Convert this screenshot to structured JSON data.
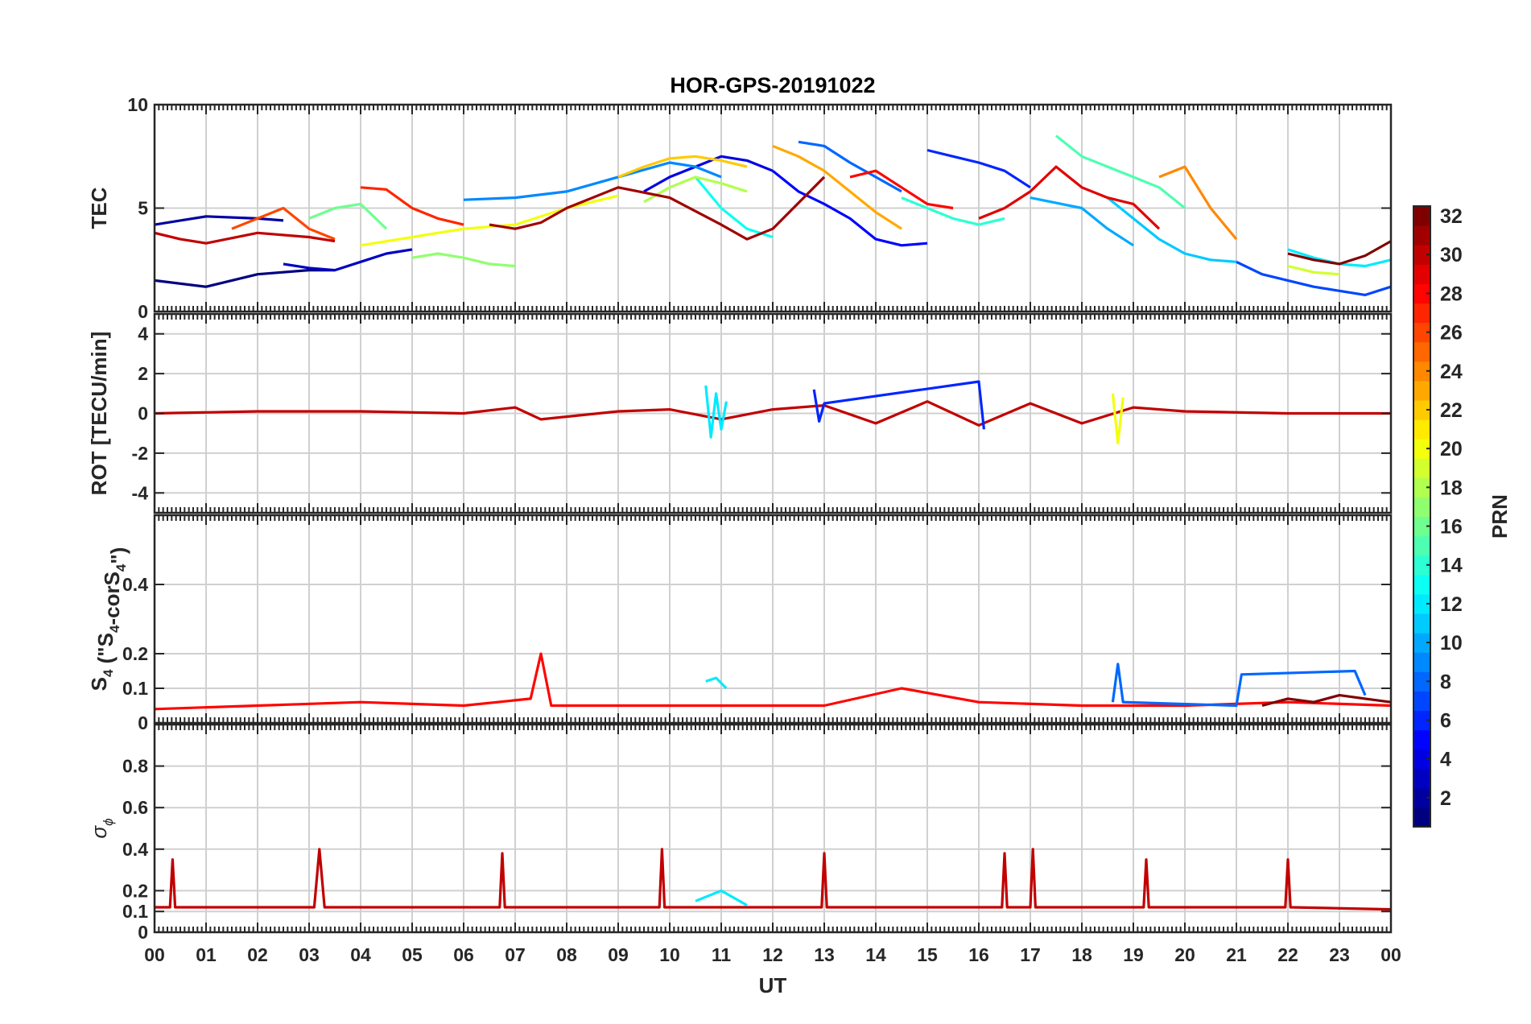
{
  "title": "HOR-GPS-20191022",
  "xlabel": "UT",
  "x_ticks": [
    "00",
    "01",
    "02",
    "03",
    "04",
    "05",
    "06",
    "07",
    "08",
    "09",
    "10",
    "11",
    "12",
    "13",
    "14",
    "15",
    "16",
    "17",
    "18",
    "19",
    "20",
    "21",
    "22",
    "23",
    "00"
  ],
  "panels": [
    {
      "id": "tec",
      "ylabel": "TEC",
      "ylim": [
        0,
        10
      ],
      "yticks": [
        0,
        5,
        10
      ]
    },
    {
      "id": "rot",
      "ylabel": "ROT [TECU/min]",
      "ylim": [
        -5,
        5
      ],
      "yticks": [
        -4,
        -2,
        0,
        2,
        4
      ]
    },
    {
      "id": "s4",
      "ylabel_main": "S",
      "ylabel_sub1": "4",
      "ylabel_mid": " (\"S",
      "ylabel_sub2": "4",
      "ylabel_mid2": "-corS",
      "ylabel_sub3": "4",
      "ylabel_end": "\")",
      "ylim": [
        0,
        0.6
      ],
      "yticks": [
        0,
        0.1,
        0.2,
        0.4
      ]
    },
    {
      "id": "sigma",
      "ylabel_main": "σ",
      "ylabel_sub": "ϕ",
      "ylim": [
        0,
        1
      ],
      "yticks": [
        0,
        0.1,
        0.2,
        0.4,
        0.6,
        0.8
      ]
    }
  ],
  "colorbar": {
    "label": "PRN",
    "range": [
      1,
      32
    ],
    "ticks": [
      2,
      4,
      6,
      8,
      10,
      12,
      14,
      16,
      18,
      20,
      22,
      24,
      26,
      28,
      30,
      32
    ],
    "colormap": "jet"
  },
  "chart_data": [
    {
      "type": "line",
      "title": "HOR-GPS-20191022",
      "ylabel": "TEC",
      "xlabel": "UT",
      "xlim": [
        0,
        24
      ],
      "ylim": [
        0,
        10
      ],
      "series": [
        {
          "prn": 1,
          "x": [
            0.0,
            1.0,
            2.0,
            3.0,
            3.5
          ],
          "y": [
            1.5,
            1.2,
            1.8,
            2.0,
            2.0
          ]
        },
        {
          "prn": 2,
          "x": [
            0.0,
            0.5,
            1.0,
            2.0,
            2.5
          ],
          "y": [
            4.2,
            4.4,
            4.6,
            4.5,
            4.4
          ]
        },
        {
          "prn": 3,
          "x": [
            2.5,
            3.0,
            3.5,
            4.0,
            4.5,
            5.0
          ],
          "y": [
            2.3,
            2.1,
            2.0,
            2.4,
            2.8,
            3.0
          ]
        },
        {
          "prn": 4,
          "x": [
            9.5,
            10.0,
            10.5,
            11.0,
            11.5,
            12.0
          ],
          "y": [
            5.8,
            6.5,
            7.0,
            7.5,
            7.3,
            6.8
          ]
        },
        {
          "prn": 5,
          "x": [
            12.0,
            12.5,
            13.0,
            13.5,
            14.0,
            14.5,
            15.0
          ],
          "y": [
            6.8,
            5.8,
            5.2,
            4.5,
            3.5,
            3.2,
            3.3
          ]
        },
        {
          "prn": 6,
          "x": [
            15.0,
            15.5,
            16.0,
            16.5,
            17.0
          ],
          "y": [
            7.8,
            7.5,
            7.2,
            6.8,
            6.0
          ]
        },
        {
          "prn": 7,
          "x": [
            21.0,
            21.5,
            22.0,
            22.5,
            23.0,
            23.5,
            24.0
          ],
          "y": [
            2.4,
            1.8,
            1.5,
            1.2,
            1.0,
            0.8,
            1.2
          ]
        },
        {
          "prn": 8,
          "x": [
            12.5,
            13.0,
            13.5,
            14.0,
            14.5
          ],
          "y": [
            8.2,
            8.0,
            7.2,
            6.5,
            5.8
          ]
        },
        {
          "prn": 9,
          "x": [
            6.0,
            7.0,
            8.0,
            9.0,
            10.0,
            10.5,
            11.0
          ],
          "y": [
            5.4,
            5.5,
            5.8,
            6.5,
            7.2,
            7.0,
            6.5
          ]
        },
        {
          "prn": 10,
          "x": [
            17.0,
            18.0,
            18.5,
            19.0
          ],
          "y": [
            5.5,
            5.0,
            4.0,
            3.2
          ]
        },
        {
          "prn": 11,
          "x": [
            18.5,
            19.0,
            19.5,
            20.0,
            20.5,
            21.0
          ],
          "y": [
            5.5,
            4.5,
            3.5,
            2.8,
            2.5,
            2.4
          ]
        },
        {
          "prn": 12,
          "x": [
            22.0,
            22.5,
            23.0,
            23.5,
            24.0
          ],
          "y": [
            3.0,
            2.6,
            2.3,
            2.2,
            2.5
          ]
        },
        {
          "prn": 13,
          "x": [
            10.5,
            11.0,
            11.5,
            12.0
          ],
          "y": [
            6.5,
            5.0,
            4.0,
            3.6
          ]
        },
        {
          "prn": 14,
          "x": [
            14.5,
            15.0,
            15.5,
            16.0,
            16.5
          ],
          "y": [
            5.5,
            5.0,
            4.5,
            4.2,
            4.5
          ]
        },
        {
          "prn": 15,
          "x": [
            17.5,
            18.0,
            18.5,
            19.0,
            19.5,
            20.0
          ],
          "y": [
            8.5,
            7.5,
            7.0,
            6.5,
            6.0,
            5.0
          ]
        },
        {
          "prn": 16,
          "x": [
            3.0,
            3.5,
            4.0,
            4.5
          ],
          "y": [
            4.5,
            5.0,
            5.2,
            4.0
          ]
        },
        {
          "prn": 17,
          "x": [
            5.0,
            5.5,
            6.0,
            6.5,
            7.0
          ],
          "y": [
            2.6,
            2.8,
            2.6,
            2.3,
            2.2
          ]
        },
        {
          "prn": 18,
          "x": [
            9.5,
            10.0,
            10.5,
            11.0,
            11.5
          ],
          "y": [
            5.3,
            6.0,
            6.5,
            6.2,
            5.8
          ]
        },
        {
          "prn": 19,
          "x": [
            22.0,
            22.5,
            23.0
          ],
          "y": [
            2.2,
            1.9,
            1.8
          ]
        },
        {
          "prn": 20,
          "x": [
            4.0,
            5.0,
            6.0,
            7.0,
            8.0,
            9.0
          ],
          "y": [
            3.2,
            3.6,
            4.0,
            4.2,
            5.0,
            5.6
          ]
        },
        {
          "prn": 22,
          "x": [
            9.0,
            9.5,
            10.0,
            10.5,
            11.0,
            11.5
          ],
          "y": [
            6.5,
            7.0,
            7.4,
            7.5,
            7.3,
            7.0
          ]
        },
        {
          "prn": 23,
          "x": [
            12.0,
            12.5,
            13.0,
            13.5,
            14.0,
            14.5
          ],
          "y": [
            8.0,
            7.5,
            6.8,
            5.8,
            4.8,
            4.0
          ]
        },
        {
          "prn": 24,
          "x": [
            19.5,
            20.0,
            20.5,
            21.0
          ],
          "y": [
            6.5,
            7.0,
            5.0,
            3.5
          ]
        },
        {
          "prn": 26,
          "x": [
            1.5,
            2.0,
            2.5,
            3.0,
            3.5
          ],
          "y": [
            4.0,
            4.5,
            5.0,
            4.0,
            3.5
          ]
        },
        {
          "prn": 27,
          "x": [
            4.0,
            4.5,
            5.0,
            5.5,
            6.0
          ],
          "y": [
            6.0,
            5.9,
            5.0,
            4.5,
            4.2
          ]
        },
        {
          "prn": 28,
          "x": [
            13.5,
            14.0,
            14.5,
            15.0,
            15.5
          ],
          "y": [
            6.5,
            6.8,
            6.0,
            5.2,
            5.0
          ]
        },
        {
          "prn": 29,
          "x": [
            16.0,
            16.5,
            17.0,
            17.5,
            18.0,
            18.5,
            19.0,
            19.5
          ],
          "y": [
            4.5,
            5.0,
            5.8,
            7.0,
            6.0,
            5.5,
            5.2,
            4.0
          ]
        },
        {
          "prn": 30,
          "x": [
            0.0,
            0.5,
            1.0,
            2.0,
            3.0,
            3.5
          ],
          "y": [
            3.8,
            3.5,
            3.3,
            3.8,
            3.6,
            3.4
          ]
        },
        {
          "prn": 31,
          "x": [
            6.5,
            7.0,
            7.5,
            8.0,
            9.0,
            10.0,
            11.0,
            11.5,
            12.0,
            13.0
          ],
          "y": [
            4.2,
            4.0,
            4.3,
            5.0,
            6.0,
            5.5,
            4.2,
            3.5,
            4.0,
            6.5
          ]
        },
        {
          "prn": 32,
          "x": [
            22.0,
            22.5,
            23.0,
            23.5,
            24.0
          ],
          "y": [
            2.8,
            2.5,
            2.3,
            2.7,
            3.4
          ]
        }
      ]
    },
    {
      "type": "line",
      "ylabel": "ROT [TECU/min]",
      "xlim": [
        0,
        24
      ],
      "ylim": [
        -5,
        5
      ],
      "series": [
        {
          "prn": 30,
          "x": [
            0.0,
            2.0,
            4.0,
            6.0,
            7.0,
            7.5,
            9.0,
            10.0,
            11.0,
            12.0,
            13.0,
            14.0,
            15.0,
            16.0,
            17.0,
            18.0,
            19.0,
            20.0,
            22.0,
            24.0
          ],
          "y": [
            0.0,
            0.1,
            0.1,
            0.0,
            0.3,
            -0.3,
            0.1,
            0.2,
            -0.3,
            0.2,
            0.4,
            -0.5,
            0.6,
            -0.6,
            0.5,
            -0.5,
            0.3,
            0.1,
            0.0,
            0.0
          ]
        },
        {
          "prn": 12,
          "x": [
            10.7,
            10.8,
            10.9,
            11.0,
            11.1
          ],
          "y": [
            1.4,
            -1.2,
            1.0,
            -0.8,
            0.6
          ]
        },
        {
          "prn": 6,
          "x": [
            12.8,
            12.9,
            13.0,
            16.0,
            16.1
          ],
          "y": [
            1.2,
            -0.4,
            0.5,
            1.6,
            -0.8
          ]
        },
        {
          "prn": 20,
          "x": [
            18.6,
            18.7,
            18.8
          ],
          "y": [
            1.0,
            -1.5,
            0.8
          ]
        }
      ]
    },
    {
      "type": "line",
      "ylabel": "S4 (\"S4-corS4\")",
      "xlim": [
        0,
        24
      ],
      "ylim": [
        0,
        0.6
      ],
      "series": [
        {
          "prn": 28,
          "x": [
            0.0,
            2.0,
            4.0,
            6.0,
            7.3,
            7.5,
            7.7,
            9.0,
            11.0,
            13.0,
            14.5,
            16.0,
            18.0,
            20.0,
            22.0,
            24.0
          ],
          "y": [
            0.04,
            0.05,
            0.06,
            0.05,
            0.07,
            0.2,
            0.05,
            0.05,
            0.05,
            0.05,
            0.1,
            0.06,
            0.05,
            0.05,
            0.06,
            0.05
          ]
        },
        {
          "prn": 12,
          "x": [
            10.7,
            10.9,
            11.1
          ],
          "y": [
            0.12,
            0.13,
            0.1
          ]
        },
        {
          "prn": 8,
          "x": [
            18.6,
            18.7,
            18.8,
            21.0,
            21.1,
            23.3,
            23.5
          ],
          "y": [
            0.06,
            0.17,
            0.06,
            0.05,
            0.14,
            0.15,
            0.08
          ]
        },
        {
          "prn": 32,
          "x": [
            21.5,
            22.0,
            22.5,
            23.0,
            23.5,
            24.0
          ],
          "y": [
            0.05,
            0.07,
            0.06,
            0.08,
            0.07,
            0.06
          ]
        }
      ]
    },
    {
      "type": "line",
      "ylabel": "σϕ",
      "xlim": [
        0,
        24
      ],
      "ylim": [
        0,
        1
      ],
      "series": [
        {
          "prn": 30,
          "x": [
            0.0,
            0.3,
            0.35,
            0.4,
            3.1,
            3.2,
            3.3,
            6.7,
            6.75,
            6.8,
            9.8,
            9.85,
            9.9,
            12.95,
            13.0,
            13.05,
            16.45,
            16.5,
            16.55,
            17.0,
            17.05,
            17.1,
            19.2,
            19.25,
            19.3,
            21.95,
            22.0,
            22.05,
            24.0
          ],
          "y": [
            0.12,
            0.12,
            0.35,
            0.12,
            0.12,
            0.4,
            0.12,
            0.12,
            0.38,
            0.12,
            0.12,
            0.4,
            0.12,
            0.12,
            0.38,
            0.12,
            0.12,
            0.38,
            0.12,
            0.12,
            0.4,
            0.12,
            0.12,
            0.35,
            0.12,
            0.12,
            0.35,
            0.12,
            0.11
          ]
        },
        {
          "prn": 12,
          "x": [
            10.5,
            11.0,
            11.5
          ],
          "y": [
            0.15,
            0.2,
            0.13
          ]
        }
      ]
    }
  ]
}
